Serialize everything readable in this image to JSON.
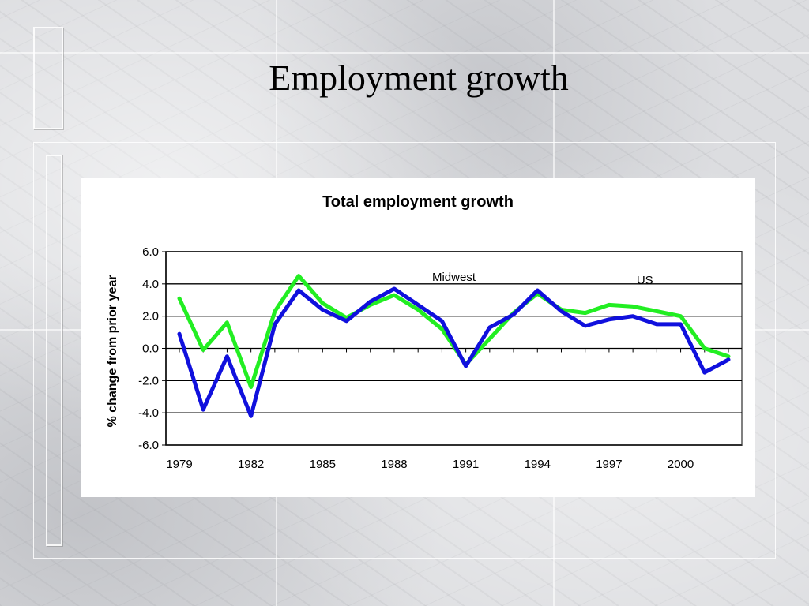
{
  "slide": {
    "title": "Employment growth"
  },
  "chart_data": {
    "type": "line",
    "title": "Total employment growth",
    "xlabel": "",
    "ylabel": "% change from prior year",
    "ylim": [
      -6,
      6
    ],
    "yticks": [
      "6.0",
      "4.0",
      "2.0",
      "0.0",
      "-2.0",
      "-4.0",
      "-6.0"
    ],
    "ytick_values": [
      6,
      4,
      2,
      0,
      -2,
      -4,
      -6
    ],
    "x": [
      1979,
      1980,
      1981,
      1982,
      1983,
      1984,
      1985,
      1986,
      1987,
      1988,
      1989,
      1990,
      1991,
      1992,
      1993,
      1994,
      1995,
      1996,
      1997,
      1998,
      1999,
      2000,
      2001,
      2002
    ],
    "xticks": [
      "1979",
      "1982",
      "1985",
      "1988",
      "1991",
      "1994",
      "1997",
      "2000"
    ],
    "xtick_values": [
      1979,
      1982,
      1985,
      1988,
      1991,
      1994,
      1997,
      2000
    ],
    "grid": true,
    "series": [
      {
        "name": "US",
        "color": "#22ee22",
        "values": [
          3.1,
          -0.1,
          1.6,
          -2.4,
          2.3,
          4.5,
          2.8,
          1.9,
          2.7,
          3.3,
          2.4,
          1.2,
          -1.0,
          0.6,
          2.2,
          3.4,
          2.4,
          2.2,
          2.7,
          2.6,
          2.3,
          2.0,
          0.0,
          -0.5
        ]
      },
      {
        "name": "Midwest",
        "color": "#1010dd",
        "values": [
          0.9,
          -3.8,
          -0.5,
          -4.2,
          1.5,
          3.6,
          2.4,
          1.7,
          2.9,
          3.7,
          2.7,
          1.7,
          -1.1,
          1.3,
          2.1,
          3.6,
          2.3,
          1.4,
          1.8,
          2.0,
          1.5,
          1.5,
          -1.5,
          -0.7
        ]
      }
    ],
    "annotations": [
      {
        "text": "Midwest",
        "series": "Midwest"
      },
      {
        "text": "US",
        "series": "US"
      }
    ],
    "plot_background": "#ffffff",
    "gridline_color": "#000000"
  }
}
